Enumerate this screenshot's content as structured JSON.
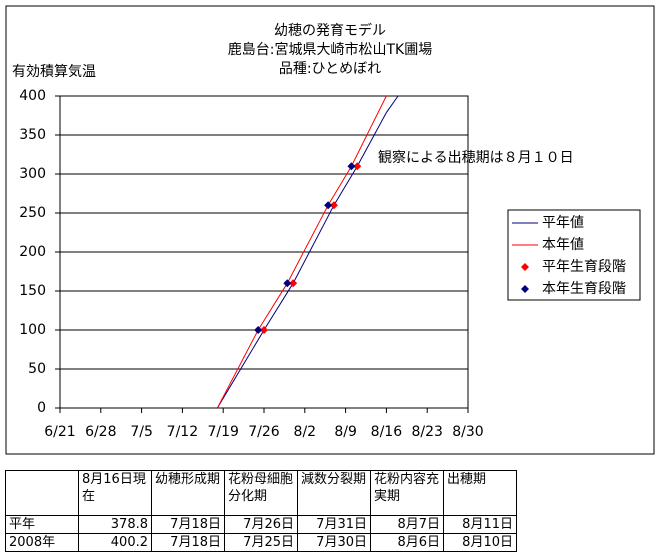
{
  "chart_data": {
    "type": "line",
    "title": [
      "幼穂の発育モデル",
      "鹿島台:宮城県大崎市松山TK圃場",
      "品種:ひとめぼれ"
    ],
    "y_label": "有効積算気温",
    "annotation": {
      "text": "観察による出穂期は８月１０日",
      "color": "#0000cc"
    },
    "xlim": [
      "6/21",
      "8/30"
    ],
    "xticks": [
      "6/21",
      "6/28",
      "7/5",
      "7/12",
      "7/19",
      "7/26",
      "8/2",
      "8/9",
      "8/16",
      "8/23",
      "8/30"
    ],
    "ylim": [
      0,
      400
    ],
    "yticks": [
      0,
      50,
      100,
      150,
      200,
      250,
      300,
      350,
      400
    ],
    "grid": true,
    "legend": "right",
    "series": [
      {
        "name": "平年値",
        "color": "#000080",
        "style": "line",
        "x": [
          "7/18",
          "7/26",
          "7/31",
          "8/7",
          "8/11",
          "8/16",
          "8/18"
        ],
        "values": [
          0,
          100,
          160,
          260,
          310,
          378.8,
          400
        ]
      },
      {
        "name": "本年値",
        "color": "#ff0000",
        "style": "line",
        "x": [
          "7/18",
          "7/25",
          "7/30",
          "8/6",
          "8/10",
          "8/16"
        ],
        "values": [
          0,
          100,
          160,
          260,
          310,
          400.2
        ]
      },
      {
        "name": "平年生育段階",
        "color": "#ff0000",
        "style": "marker",
        "x": [
          "7/26",
          "7/31",
          "8/7",
          "8/11"
        ],
        "values": [
          100,
          160,
          260,
          310
        ]
      },
      {
        "name": "本年生育段階",
        "color": "#000080",
        "style": "marker",
        "x": [
          "7/25",
          "7/30",
          "8/6",
          "8/10"
        ],
        "values": [
          100,
          160,
          260,
          310
        ]
      }
    ]
  },
  "table": {
    "header": [
      "8月16日現在",
      "幼穂形成期",
      "花粉母細胞分化期",
      "減数分裂期",
      "花粉内容充実期",
      "出穂期"
    ],
    "rows": [
      [
        "平年",
        378.8,
        "7月18日",
        "7月26日",
        "7月31日",
        "8月7日",
        "8月11日"
      ],
      [
        "2008年",
        400.2,
        "7月18日",
        "7月25日",
        "7月30日",
        "8月6日",
        "8月10日"
      ]
    ]
  }
}
